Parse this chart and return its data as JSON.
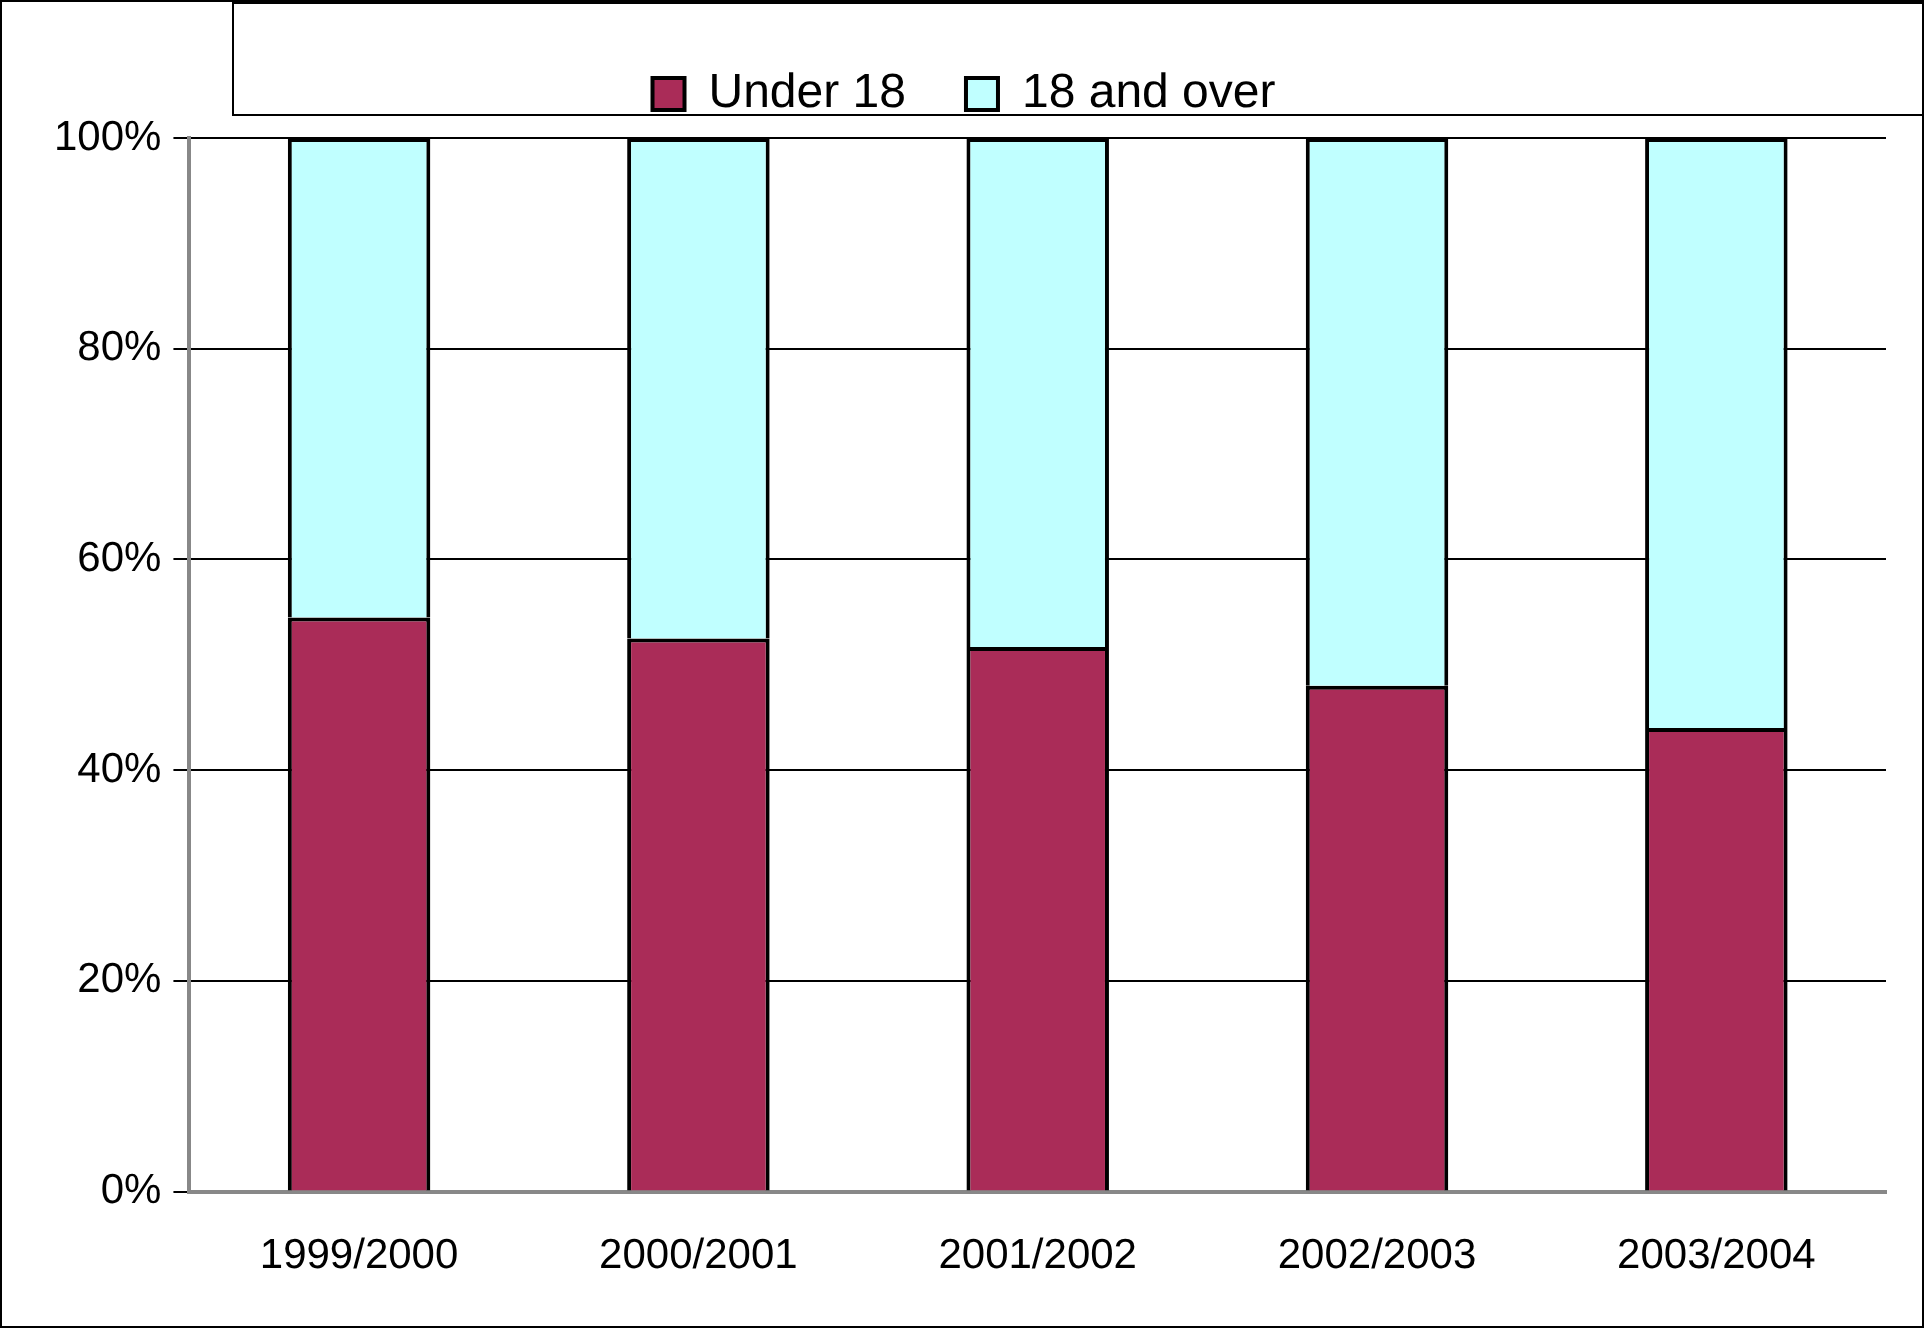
{
  "chart_data": {
    "type": "bar",
    "stacked": true,
    "categories": [
      "1999/2000",
      "2000/2001",
      "2001/2002",
      "2002/2003",
      "2003/2004"
    ],
    "series": [
      {
        "name": "Under 18",
        "color": "#aa2c58",
        "values": [
          54.5,
          52.5,
          51.7,
          48,
          44
        ]
      },
      {
        "name": "18 and over",
        "color": "#c0ffff",
        "values": [
          45.5,
          47.5,
          48.3,
          52,
          56
        ]
      }
    ],
    "ylim": [
      0,
      100
    ],
    "yticks": [
      {
        "value": 0,
        "label": "0%"
      },
      {
        "value": 20,
        "label": "20%"
      },
      {
        "value": 40,
        "label": "40%"
      },
      {
        "value": 60,
        "label": "60%"
      },
      {
        "value": 80,
        "label": "80%"
      },
      {
        "value": 100,
        "label": "100%"
      }
    ],
    "grid": "y",
    "legend": "top"
  }
}
